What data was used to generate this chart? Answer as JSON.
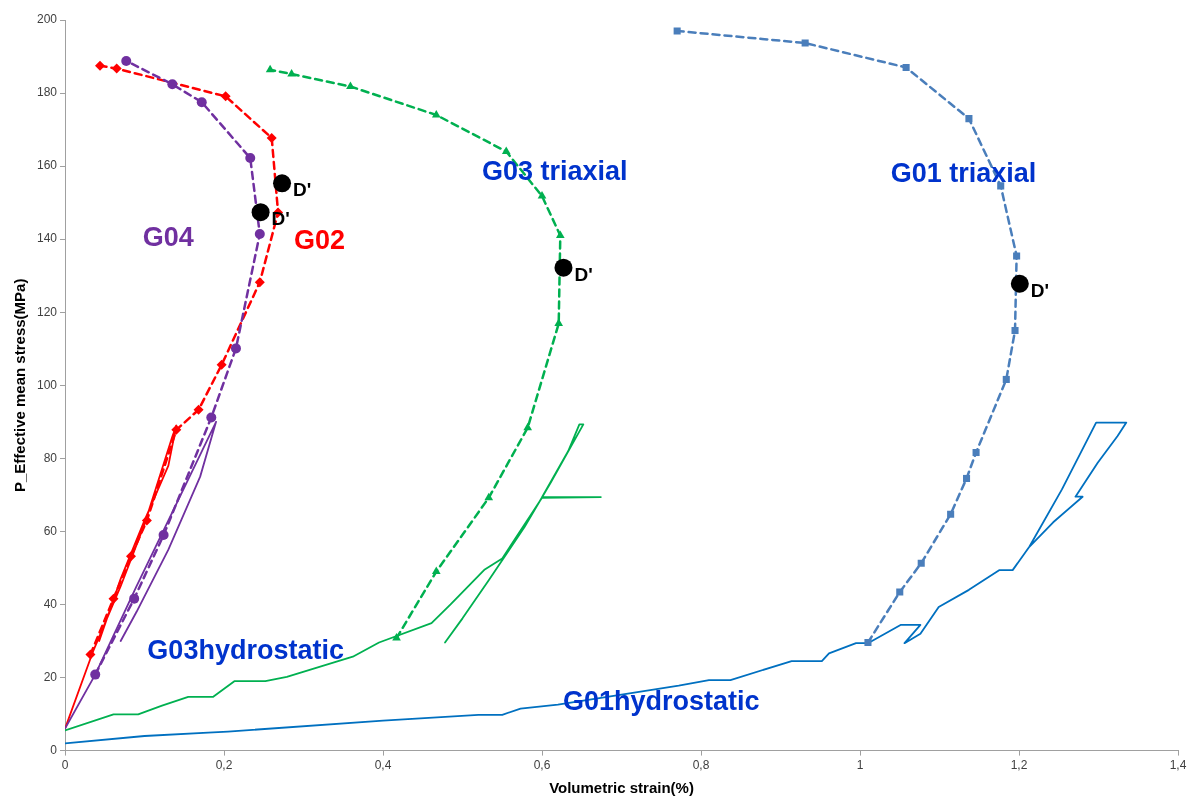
{
  "chart_data": {
    "type": "line",
    "xlabel": "Volumetric strain(%)",
    "ylabel": "P_Effective mean stress(MPa)",
    "xlim": [
      0,
      1.4
    ],
    "xticks": [
      0,
      {
        "value": 0.2,
        "label": "0,2"
      },
      {
        "value": 0.4,
        "label": "0,4"
      },
      {
        "value": 0.6,
        "label": "0,6"
      },
      {
        "value": 0.8,
        "label": "0,8"
      },
      1,
      {
        "value": 1.2,
        "label": "1,2"
      },
      {
        "value": 1.4,
        "label": "1,4"
      }
    ],
    "ylim": [
      0,
      200
    ],
    "yticks": [
      0,
      20,
      40,
      60,
      80,
      100,
      120,
      140,
      160,
      180,
      200
    ],
    "grid": false,
    "legend": false,
    "series": [
      {
        "color": "#ff0000",
        "marker": "none",
        "line_style": "solid",
        "x": [
          0,
          0.035,
          0.07,
          0.1,
          0.135,
          0.14,
          0.13,
          0.1,
          0.07,
          0.043
        ],
        "values": [
          6,
          27,
          45,
          62,
          86,
          89,
          78,
          63,
          47,
          30
        ]
      },
      {
        "name": "G02",
        "color": "#ff0000",
        "marker": "diamond",
        "line_style": "dashed",
        "x": [
          0.032,
          0.061,
          0.083,
          0.103,
          0.14,
          0.168,
          0.197,
          0.245,
          0.268,
          0.26,
          0.202,
          0.065,
          0.044
        ],
        "values": [
          26.3,
          41.6,
          53.2,
          63,
          87.8,
          93.3,
          105.6,
          128.2,
          147.3,
          167.7,
          179.1,
          186.7,
          187.5
        ]
      },
      {
        "color": "#7030a0",
        "marker": "none",
        "line_style": "solid",
        "x": [
          0,
          0.038,
          0.09,
          0.15,
          0.19,
          0.17,
          0.13,
          0.09,
          0.07
        ],
        "values": [
          6,
          20.8,
          45,
          72,
          90,
          75,
          55,
          38,
          30
        ]
      },
      {
        "name": "G04",
        "color": "#7030a0",
        "marker": "circle",
        "line_style": "dashed",
        "x": [
          0.038,
          0.087,
          0.124,
          0.184,
          0.215,
          0.245,
          0.233,
          0.172,
          0.135,
          0.077
        ],
        "values": [
          20.8,
          41.6,
          59,
          91.2,
          110.1,
          141.4,
          162.2,
          177.5,
          182.4,
          188.8
        ]
      },
      {
        "name": "G03hydrostatic",
        "color": "#00b050",
        "marker": "none",
        "line_style": "solid",
        "x": [
          0,
          0.061,
          0.092,
          0.122,
          0.155,
          0.186,
          0.213,
          0.252,
          0.279,
          0.362,
          0.395,
          0.461,
          0.485,
          0.528,
          0.55,
          0.6,
          0.674,
          0.6,
          0.633,
          0.647,
          0.652,
          0.611,
          0.578,
          0.533,
          0.5,
          0.478
        ],
        "values": [
          5.5,
          9.9,
          9.9,
          12.3,
          14.7,
          14.7,
          19,
          19,
          20.2,
          25.7,
          29.6,
          34.9,
          40,
          49.6,
          52.6,
          69.2,
          69.4,
          69.4,
          82,
          89.3,
          89.3,
          73.4,
          61.2,
          46.6,
          36.2,
          29.6
        ]
      },
      {
        "name": "G03 triaxial",
        "color": "#00b050",
        "marker": "triangle",
        "line_style": "dashed",
        "x": [
          0.417,
          0.467,
          0.533,
          0.582,
          0.621,
          0.623,
          0.6,
          0.555,
          0.467,
          0.359,
          0.285,
          0.258
        ],
        "values": [
          30.8,
          49,
          69.2,
          88.4,
          116.9,
          141,
          151.8,
          164,
          174,
          181.8,
          185.2,
          186.4
        ]
      },
      {
        "name": "G01hydrostatic",
        "color": "#0070c0",
        "marker": "none",
        "line_style": "solid",
        "x": [
          0,
          0.1,
          0.18,
          0.205,
          0.4,
          0.52,
          0.55,
          0.573,
          0.62,
          0.772,
          0.81,
          0.837,
          0.914,
          0.952,
          0.961,
          0.995,
          1.01,
          1.051,
          1.076,
          1.056,
          1.076,
          1.099,
          1.137,
          1.175,
          1.192,
          1.213,
          1.254,
          1.297,
          1.335,
          1.324,
          1.299,
          1.271,
          1.28,
          1.243,
          1.213
        ],
        "values": [
          2,
          4,
          4.9,
          5.2,
          8.2,
          9.8,
          9.8,
          11.5,
          12.6,
          17.8,
          19.3,
          19.3,
          24.5,
          24.5,
          26.6,
          29.4,
          29.4,
          34.4,
          34.4,
          29.4,
          32,
          39.3,
          44,
          49.4,
          49.4,
          55.8,
          71.5,
          89.8,
          89.8,
          86.1,
          78.8,
          69.5,
          69.5,
          62.5,
          55.8
        ]
      },
      {
        "name": "G01 triaxial",
        "color": "#4a7ebb",
        "marker": "square",
        "line_style": "dashed",
        "x": [
          1.01,
          1.05,
          1.077,
          1.114,
          1.134,
          1.146,
          1.184,
          1.195,
          1.197,
          1.177,
          1.137,
          1.058,
          0.931,
          0.77
        ],
        "values": [
          29.6,
          43.4,
          51.3,
          64.7,
          74.5,
          81.6,
          101.6,
          115,
          135.4,
          154.6,
          173,
          187,
          193.7,
          197
        ]
      },
      {
        "type": "scatter",
        "color": "#000000",
        "marker": "circle",
        "x": [
          0.246,
          0.273,
          0.627,
          1.201
        ],
        "values": [
          147.4,
          155.3,
          132.2,
          127.8
        ]
      }
    ],
    "annotations": [
      {
        "text": "D'",
        "x": 0.246,
        "y": 147.4
      },
      {
        "text": "D'",
        "x": 0.273,
        "y": 155.3
      },
      {
        "text": "D'",
        "x": 0.627,
        "y": 132.2
      },
      {
        "text": "D'",
        "x": 1.201,
        "y": 127.8
      }
    ]
  }
}
